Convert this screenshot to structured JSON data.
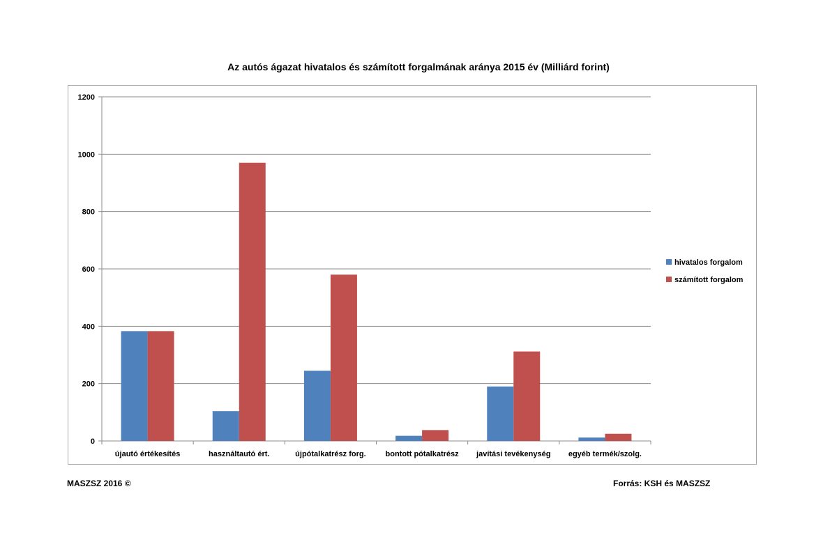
{
  "chart_data": {
    "type": "bar",
    "title": "Az autós ágazat hivatalos és számított forgalmának aránya 2015 év (Milliárd forint)",
    "xlabel": "",
    "ylabel": "",
    "ylim": [
      0,
      1200
    ],
    "yticks": [
      0,
      200,
      400,
      600,
      800,
      1000,
      1200
    ],
    "grid": true,
    "legend_position": "right",
    "categories": [
      "újautó értékesítés",
      "használtautó ért.",
      "újpótalkatrész forg.",
      "bontott pótalkatrész",
      "javítási tevékenység",
      "egyéb termék/szolg."
    ],
    "series": [
      {
        "name": "hivatalos forgalom",
        "color": "#4f81bd",
        "values": [
          383,
          104,
          245,
          18,
          190,
          12
        ]
      },
      {
        "name": "számított forgalom",
        "color": "#c0504d",
        "values": [
          383,
          970,
          580,
          38,
          312,
          25
        ]
      }
    ]
  },
  "footer": {
    "left": "MASZSZ 2016 ©",
    "right": "Forrás: KSH és MASZSZ"
  }
}
